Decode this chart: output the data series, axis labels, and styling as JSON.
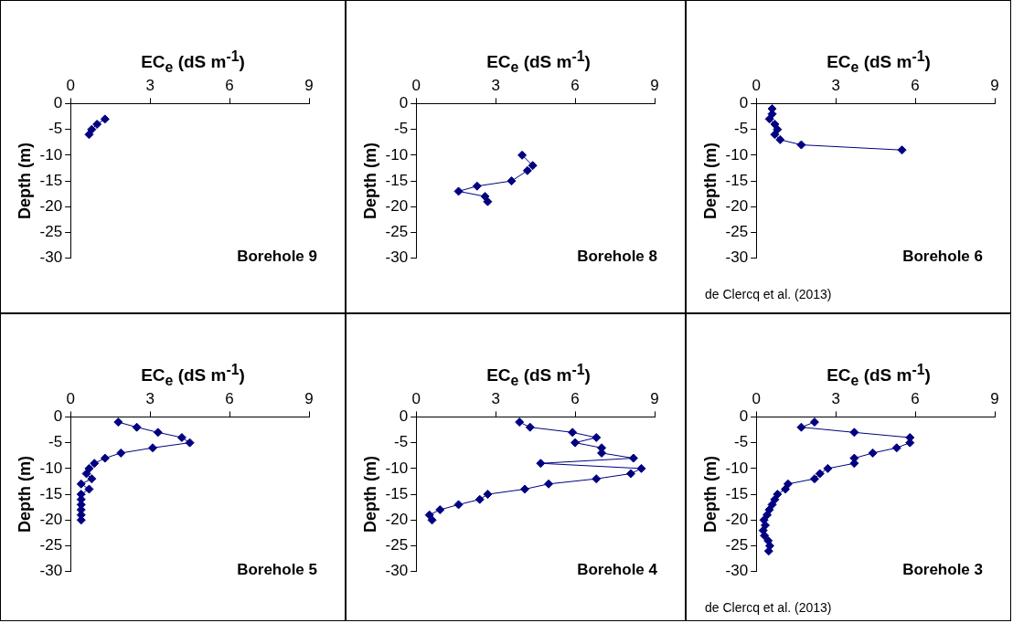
{
  "chart_data": [
    {
      "type": "line",
      "xlabel": "EC$_{e}$ (dS m$^{-1}$)",
      "ylabel": "Depth (m)",
      "xlim": [
        0,
        9
      ],
      "xticks": [
        0,
        3,
        6,
        9
      ],
      "ylim": [
        -30,
        0
      ],
      "yticks": [
        0,
        -5,
        -10,
        -15,
        -20,
        -25,
        -30
      ],
      "grid": false,
      "legend": false,
      "marker": "diamond",
      "annotations": [
        "Borehole 9"
      ],
      "series": [
        {
          "color": "#000080",
          "x": [
            1.3,
            1.0,
            0.8,
            0.7
          ],
          "values": [
            -3,
            -4,
            -5,
            -6
          ]
        }
      ]
    },
    {
      "type": "line",
      "xlabel": "EC$_{e}$ (dS m$^{-1}$)",
      "ylabel": "Depth (m)",
      "xlim": [
        0,
        9
      ],
      "xticks": [
        0,
        3,
        6,
        9
      ],
      "ylim": [
        -30,
        0
      ],
      "yticks": [
        0,
        -5,
        -10,
        -15,
        -20,
        -25,
        -30
      ],
      "grid": false,
      "legend": false,
      "marker": "diamond",
      "annotations": [
        "Borehole 8"
      ],
      "series": [
        {
          "color": "#000080",
          "x": [
            4.0,
            4.4,
            4.2,
            3.6,
            2.3,
            1.6,
            2.6,
            2.7
          ],
          "values": [
            -10,
            -12,
            -13,
            -15,
            -16,
            -17,
            -18,
            -19
          ]
        }
      ]
    },
    {
      "type": "line",
      "xlabel": "EC$_{e}$ (dS m$^{-1}$)",
      "ylabel": "Depth (m)",
      "xlim": [
        0,
        9
      ],
      "xticks": [
        0,
        3,
        6,
        9
      ],
      "ylim": [
        -30,
        0
      ],
      "yticks": [
        0,
        -5,
        -10,
        -15,
        -20,
        -25,
        -30
      ],
      "grid": false,
      "legend": false,
      "marker": "diamond",
      "annotations": [
        "Borehole 6",
        "de Clercq et al. (2013)"
      ],
      "series": [
        {
          "color": "#000080",
          "x": [
            0.6,
            0.6,
            0.5,
            0.7,
            0.8,
            0.7,
            0.9,
            1.7,
            5.5
          ],
          "values": [
            -1,
            -2,
            -3,
            -4,
            -5,
            -6,
            -7,
            -8,
            -9
          ]
        }
      ]
    },
    {
      "type": "line",
      "xlabel": "EC$_{e}$ (dS m$^{-1}$)",
      "ylabel": "Depth (m)",
      "xlim": [
        0,
        9
      ],
      "xticks": [
        0,
        3,
        6,
        9
      ],
      "ylim": [
        -30,
        0
      ],
      "yticks": [
        0,
        -5,
        -10,
        -15,
        -20,
        -25,
        -30
      ],
      "grid": false,
      "legend": false,
      "marker": "diamond",
      "annotations": [
        "Borehole 5"
      ],
      "series": [
        {
          "color": "#000080",
          "x": [
            1.8,
            2.5,
            3.3,
            4.2,
            4.5,
            3.1,
            1.9,
            1.3,
            0.9,
            0.7,
            0.6,
            0.8,
            0.4,
            0.7,
            0.4,
            0.4,
            0.4,
            0.4,
            0.4,
            0.4
          ],
          "values": [
            -1,
            -2,
            -3,
            -4,
            -5,
            -6,
            -7,
            -8,
            -9,
            -10,
            -11,
            -12,
            -13,
            -14,
            -15,
            -16,
            -17,
            -18,
            -19,
            -20
          ]
        }
      ]
    },
    {
      "type": "line",
      "xlabel": "EC$_{e}$ (dS m$^{-1}$)",
      "ylabel": "Depth (m)",
      "xlim": [
        0,
        9
      ],
      "xticks": [
        0,
        3,
        6,
        9
      ],
      "ylim": [
        -30,
        0
      ],
      "yticks": [
        0,
        -5,
        -10,
        -15,
        -20,
        -25,
        -30
      ],
      "grid": false,
      "legend": false,
      "marker": "diamond",
      "annotations": [
        "Borehole 4"
      ],
      "series": [
        {
          "color": "#000080",
          "x": [
            3.9,
            4.3,
            5.9,
            6.8,
            6.0,
            7.0,
            7.0,
            8.2,
            4.7,
            8.5,
            8.1,
            6.8,
            5.0,
            4.1,
            2.7,
            2.4,
            1.6,
            0.9,
            0.5,
            0.6
          ],
          "values": [
            -1,
            -2,
            -3,
            -4,
            -5,
            -6,
            -7,
            -8,
            -9,
            -10,
            -11,
            -12,
            -13,
            -14,
            -15,
            -16,
            -17,
            -18,
            -19,
            -20
          ]
        }
      ]
    },
    {
      "type": "line",
      "xlabel": "EC$_{e}$ (dS m$^{-1}$)",
      "ylabel": "Depth (m)",
      "xlim": [
        0,
        9
      ],
      "xticks": [
        0,
        3,
        6,
        9
      ],
      "ylim": [
        -30,
        0
      ],
      "yticks": [
        0,
        -5,
        -10,
        -15,
        -20,
        -25,
        -30
      ],
      "grid": false,
      "legend": false,
      "marker": "diamond",
      "annotations": [
        "Borehole 3",
        "de Clercq et al. (2013)"
      ],
      "series": [
        {
          "color": "#000080",
          "x": [
            2.2,
            1.7,
            3.7,
            5.8,
            5.8,
            5.3,
            4.4,
            3.7,
            3.7,
            2.7,
            2.4,
            2.2,
            1.2,
            1.1,
            0.8,
            0.7,
            0.6,
            0.49,
            0.41,
            0.29,
            0.34,
            0.26,
            0.31,
            0.45,
            0.51,
            0.47
          ],
          "values": [
            -1,
            -2,
            -3,
            -4,
            -5,
            -6,
            -7,
            -8,
            -9,
            -10,
            -11,
            -12,
            -13,
            -14,
            -15,
            -16,
            -17,
            -18,
            -19,
            -20,
            -21,
            -22,
            -23,
            -24,
            -25,
            -26
          ]
        }
      ]
    }
  ]
}
